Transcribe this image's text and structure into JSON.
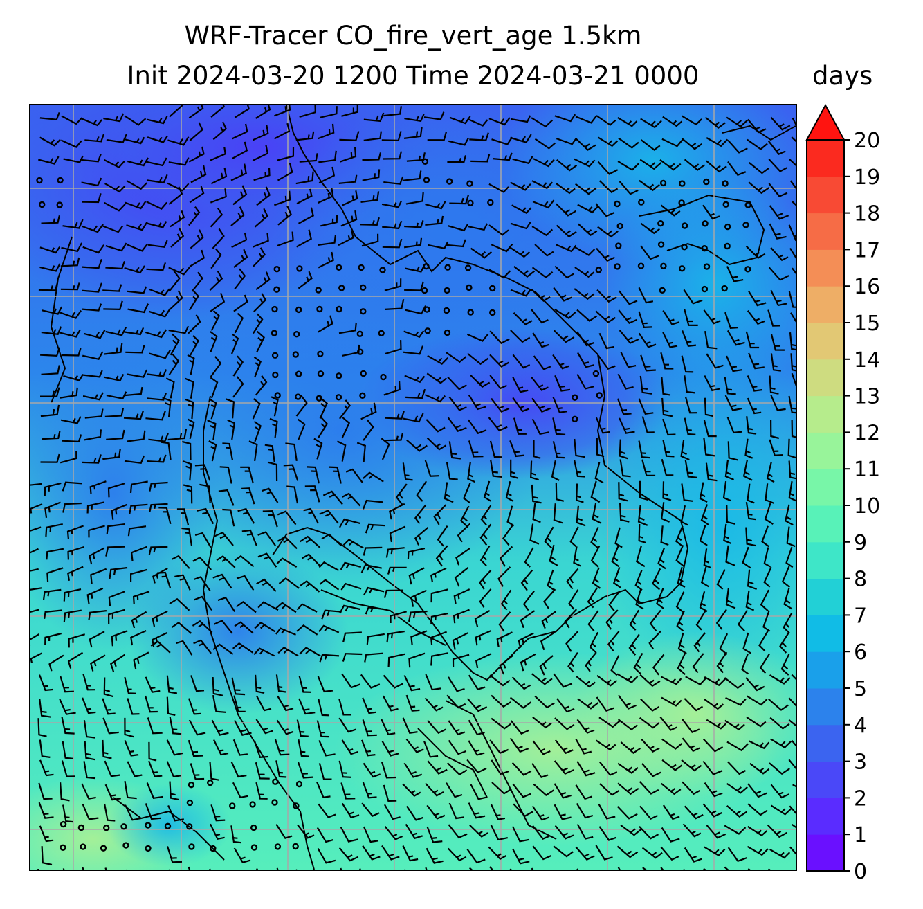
{
  "title": {
    "line1": "WRF-Tracer CO_fire_vert_age 1.5km",
    "line2": "Init 2024-03-20 1200 Time 2024-03-21 0000"
  },
  "colorbar": {
    "unit": "days",
    "min": 0,
    "max": 20,
    "extend": "max",
    "ticks": [
      0,
      1,
      2,
      3,
      4,
      5,
      6,
      7,
      8,
      9,
      10,
      11,
      12,
      13,
      14,
      15,
      16,
      17,
      18,
      19,
      20
    ],
    "levels": [
      "#6a10ff",
      "#5a2cff",
      "#4a48f8",
      "#3b64f0",
      "#2c82ec",
      "#1aa0ea",
      "#11bce6",
      "#22d0d6",
      "#3ee6c8",
      "#58f2b8",
      "#78f6a8",
      "#98f49a",
      "#b6ec8c",
      "#cedc80",
      "#e2c874",
      "#eeae66",
      "#f48e56",
      "#f66c46",
      "#f84a34",
      "#fb2a1f"
    ],
    "extend_color": "#ff1410"
  },
  "map": {
    "gridlines": true,
    "symbols": [
      "wind-barb-icon",
      "calm-circle-icon"
    ]
  }
}
